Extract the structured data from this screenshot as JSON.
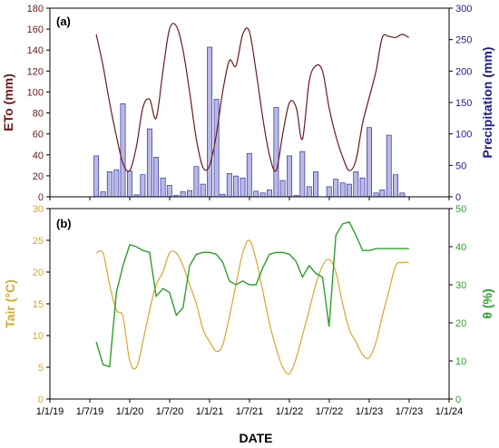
{
  "colors": {
    "eto": "#6b1a1a",
    "precip_axis": "#1c1c8c",
    "bar_fill": "#b9b9e8",
    "bar_stroke": "#2f2f9a",
    "tair": "#d4a830",
    "theta": "#2ca02c",
    "axis": "#000000"
  },
  "chart_data": [
    {
      "type": "bar",
      "panel_label": "(a)",
      "ylabel_left": "ETo (mm)",
      "ylabel_right": "Precipitation (mm)",
      "xlabel": "",
      "ylim_left": [
        0,
        180
      ],
      "ylim_right": [
        0,
        300
      ],
      "yticks_left": [
        "0",
        "20",
        "40",
        "60",
        "80",
        "100",
        "120",
        "140",
        "160",
        "180"
      ],
      "yticks_right": [
        "0",
        "50",
        "100",
        "150",
        "200",
        "250",
        "300"
      ],
      "grid": false,
      "series": [
        {
          "name": "ETo",
          "type": "line",
          "axis": "left",
          "x": [
            "2019-08-01",
            "2019-09-01",
            "2019-10-01",
            "2019-11-01",
            "2019-12-01",
            "2020-01-01",
            "2020-02-01",
            "2020-03-01",
            "2020-04-01",
            "2020-05-01",
            "2020-06-01",
            "2020-07-01",
            "2020-08-01",
            "2020-09-01",
            "2020-10-01",
            "2020-11-01",
            "2020-12-01",
            "2021-01-01",
            "2021-02-01",
            "2021-03-01",
            "2021-04-01",
            "2021-05-01",
            "2021-06-01",
            "2021-07-01",
            "2021-08-01",
            "2021-09-01",
            "2021-10-01",
            "2021-11-01",
            "2021-12-01",
            "2022-01-01",
            "2022-02-01",
            "2022-03-01",
            "2022-04-01",
            "2022-05-01",
            "2022-06-01",
            "2022-07-01",
            "2022-08-01",
            "2022-09-01",
            "2022-10-01",
            "2022-11-01",
            "2022-12-01",
            "2023-01-01",
            "2023-02-01",
            "2023-03-01",
            "2023-04-01",
            "2023-05-01",
            "2023-06-01",
            "2023-07-01"
          ],
          "values": [
            155,
            125,
            90,
            58,
            32,
            25,
            48,
            85,
            93,
            75,
            120,
            160,
            163,
            140,
            100,
            55,
            28,
            30,
            60,
            100,
            130,
            125,
            155,
            158,
            120,
            75,
            40,
            25,
            60,
            90,
            85,
            55,
            110,
            125,
            120,
            85,
            58,
            38,
            25,
            35,
            70,
            95,
            120,
            152,
            153,
            152,
            155,
            152
          ]
        },
        {
          "name": "Precipitation",
          "type": "bar",
          "axis": "right",
          "x": [
            "2019-08-01",
            "2019-09-01",
            "2019-10-01",
            "2019-11-01",
            "2019-12-01",
            "2020-01-01",
            "2020-02-01",
            "2020-03-01",
            "2020-04-01",
            "2020-05-01",
            "2020-06-01",
            "2020-07-01",
            "2020-08-01",
            "2020-09-01",
            "2020-10-01",
            "2020-11-01",
            "2020-12-01",
            "2021-01-01",
            "2021-02-01",
            "2021-03-01",
            "2021-04-01",
            "2021-05-01",
            "2021-06-01",
            "2021-07-01",
            "2021-08-01",
            "2021-09-01",
            "2021-10-01",
            "2021-11-01",
            "2021-12-01",
            "2022-01-01",
            "2022-02-01",
            "2022-03-01",
            "2022-04-01",
            "2022-05-01",
            "2022-06-01",
            "2022-07-01",
            "2022-08-01",
            "2022-09-01",
            "2022-10-01",
            "2022-11-01",
            "2022-12-01",
            "2023-01-01",
            "2023-02-01",
            "2023-03-01",
            "2023-04-01",
            "2023-05-01",
            "2023-06-01",
            "2023-07-01"
          ],
          "values": [
            65,
            8,
            40,
            43,
            148,
            41,
            3,
            35,
            108,
            63,
            30,
            18,
            2,
            8,
            10,
            48,
            20,
            238,
            155,
            4,
            37,
            33,
            30,
            69,
            9,
            6,
            11,
            142,
            26,
            65,
            2,
            72,
            16,
            40,
            0,
            16,
            28,
            22,
            20,
            40,
            30,
            110,
            6,
            11,
            98,
            35,
            6,
            0
          ]
        }
      ]
    },
    {
      "type": "line",
      "panel_label": "(b)",
      "ylabel_left": "Tair (°C)",
      "ylabel_right": "θ (%)",
      "xlabel": "DATE",
      "ylim_left": [
        0,
        30
      ],
      "ylim_right": [
        0,
        50
      ],
      "yticks_left": [
        "0",
        "5",
        "10",
        "15",
        "20",
        "25",
        "30"
      ],
      "yticks_right": [
        "0",
        "10",
        "20",
        "30",
        "40",
        "50"
      ],
      "xlim": [
        "2019-01-01",
        "2024-01-01"
      ],
      "xticks": [
        "1/1/19",
        "1/7/19",
        "1/1/20",
        "1/7/20",
        "1/1/21",
        "1/7/21",
        "1/1/22",
        "1/7/22",
        "1/1/23",
        "1/7/23",
        "1/1/24"
      ],
      "grid": false,
      "series": [
        {
          "name": "Tair",
          "axis": "left",
          "x": [
            "2019-08-01",
            "2019-09-01",
            "2019-10-01",
            "2019-11-01",
            "2019-12-01",
            "2020-01-01",
            "2020-02-01",
            "2020-03-01",
            "2020-04-01",
            "2020-05-01",
            "2020-06-01",
            "2020-07-01",
            "2020-08-01",
            "2020-09-01",
            "2020-10-01",
            "2020-11-01",
            "2020-12-01",
            "2021-01-01",
            "2021-02-01",
            "2021-03-01",
            "2021-04-01",
            "2021-05-01",
            "2021-06-01",
            "2021-07-01",
            "2021-08-01",
            "2021-09-01",
            "2021-10-01",
            "2021-11-01",
            "2021-12-01",
            "2022-01-01",
            "2022-02-01",
            "2022-03-01",
            "2022-04-01",
            "2022-05-01",
            "2022-06-01",
            "2022-07-01",
            "2022-08-01",
            "2022-09-01",
            "2022-10-01",
            "2022-11-01",
            "2022-12-01",
            "2023-01-01",
            "2023-02-01",
            "2023-03-01",
            "2023-04-01",
            "2023-05-01",
            "2023-06-01",
            "2023-07-01"
          ],
          "values": [
            23,
            23,
            18,
            14,
            13,
            6,
            5,
            9,
            14,
            18,
            20,
            23,
            23,
            21,
            18,
            15,
            11,
            9,
            7.5,
            8.5,
            13,
            18,
            23,
            25,
            22,
            17,
            12,
            8,
            5,
            4,
            6.5,
            10,
            14,
            18,
            21,
            22,
            20,
            15,
            11,
            9,
            7,
            6.5,
            9,
            13,
            17,
            21,
            21.5,
            21.5
          ]
        },
        {
          "name": "θ",
          "axis": "right",
          "x": [
            "2019-08-01",
            "2019-09-01",
            "2019-10-01",
            "2019-11-01",
            "2019-12-01",
            "2020-01-01",
            "2020-02-01",
            "2020-03-01",
            "2020-04-01",
            "2020-05-01",
            "2020-06-01",
            "2020-07-01",
            "2020-08-01",
            "2020-09-01",
            "2020-10-01",
            "2020-11-01",
            "2020-12-01",
            "2021-01-01",
            "2021-02-01",
            "2021-03-01",
            "2021-04-01",
            "2021-05-01",
            "2021-06-01",
            "2021-07-01",
            "2021-08-01",
            "2021-09-01",
            "2021-10-01",
            "2021-11-01",
            "2021-12-01",
            "2022-01-01",
            "2022-02-01",
            "2022-03-01",
            "2022-04-01",
            "2022-05-01",
            "2022-06-01",
            "2022-07-01",
            "2022-08-01",
            "2022-09-01",
            "2022-10-01",
            "2022-11-01",
            "2022-12-01",
            "2023-01-01",
            "2023-02-01",
            "2023-03-01",
            "2023-04-01",
            "2023-05-01",
            "2023-06-01",
            "2023-07-01"
          ],
          "values": [
            15,
            9,
            8.5,
            28,
            35,
            40.5,
            40,
            39,
            38.5,
            27,
            29,
            28,
            22,
            24,
            35,
            38,
            38.5,
            38.5,
            38,
            36,
            31,
            30,
            31,
            30,
            30,
            34.5,
            38,
            38.5,
            38.5,
            38,
            36,
            32,
            35,
            33,
            32,
            19,
            43,
            46,
            46.5,
            43,
            39,
            39,
            39.5,
            39.5,
            39.5,
            39.5,
            39.5,
            39.5
          ]
        }
      ]
    }
  ]
}
